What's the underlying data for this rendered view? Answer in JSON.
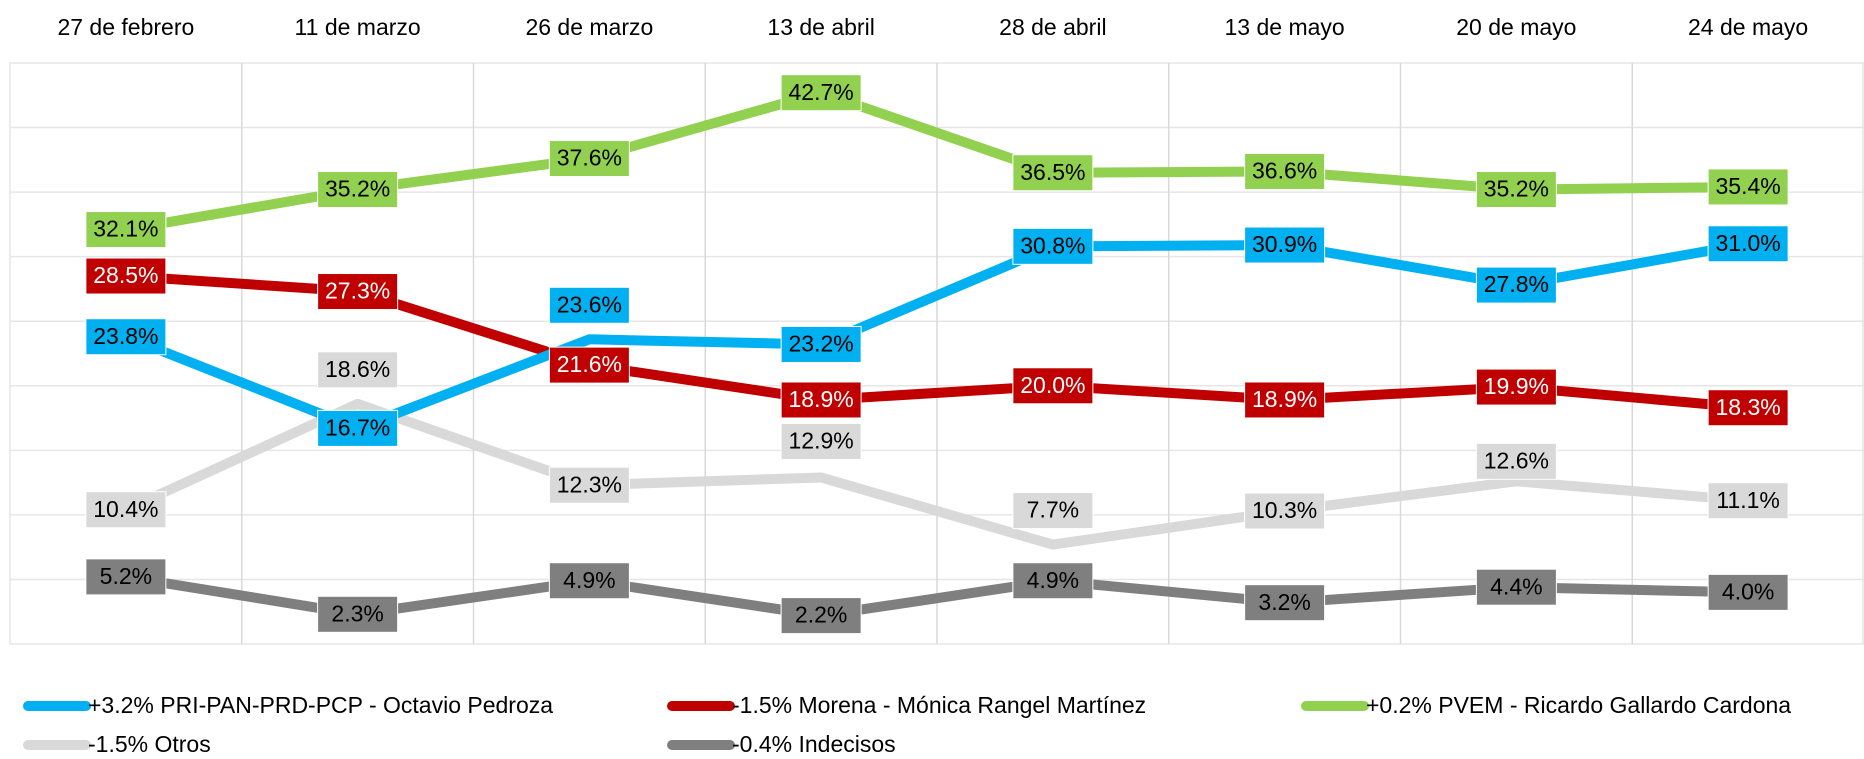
{
  "chart_data": {
    "type": "line",
    "categories": [
      "27 de febrero",
      "11 de marzo",
      "26 de marzo",
      "13 de abril",
      "28 de abril",
      "13 de mayo",
      "20 de mayo",
      "24 de mayo"
    ],
    "ylim": [
      0,
      45
    ],
    "yticks": [
      0,
      5,
      10,
      15,
      20,
      25,
      30,
      35,
      40,
      45
    ],
    "grid": true,
    "series": [
      {
        "name": "+3.2% PRI-PAN-PRD-PCP - Octavio Pedroza",
        "color": "#00b0f0",
        "values": [
          23.8,
          16.7,
          23.6,
          23.2,
          30.8,
          30.9,
          27.8,
          31.0
        ],
        "value_labels": [
          "23.8%",
          "16.7%",
          "23.6%",
          "23.2%",
          "30.8%",
          "30.9%",
          "27.8%",
          "31.0%"
        ]
      },
      {
        "name": "-1.5% Morena - Mónica Rangel Martínez",
        "color": "#c00000",
        "values": [
          28.5,
          27.3,
          21.6,
          18.9,
          20.0,
          18.9,
          19.9,
          18.3
        ],
        "value_labels": [
          "28.5%",
          "27.3%",
          "21.6%",
          "18.9%",
          "20.0%",
          "18.9%",
          "19.9%",
          "18.3%"
        ]
      },
      {
        "name": "+0.2% PVEM - Ricardo Gallardo Cardona",
        "color": "#92d050",
        "values": [
          32.1,
          35.2,
          37.6,
          42.7,
          36.5,
          36.6,
          35.2,
          35.4
        ],
        "value_labels": [
          "32.1%",
          "35.2%",
          "37.6%",
          "42.7%",
          "36.5%",
          "36.6%",
          "35.2%",
          "35.4%"
        ]
      },
      {
        "name": "-1.5% Otros",
        "color": "#d9d9d9",
        "values": [
          10.4,
          18.6,
          12.3,
          12.9,
          7.7,
          10.3,
          12.6,
          11.1
        ],
        "value_labels": [
          "10.4%",
          "18.6%",
          "12.3%",
          "12.9%",
          "7.7%",
          "10.3%",
          "12.6%",
          "11.1%"
        ]
      },
      {
        "name": "-0.4% Indecisos",
        "color": "#7f7f7f",
        "values": [
          5.2,
          2.3,
          4.9,
          2.2,
          4.9,
          3.2,
          4.4,
          4.0
        ],
        "value_labels": [
          "5.2%",
          "2.3%",
          "4.9%",
          "2.2%",
          "4.9%",
          "3.2%",
          "4.4%",
          "4.0%"
        ]
      }
    ]
  }
}
